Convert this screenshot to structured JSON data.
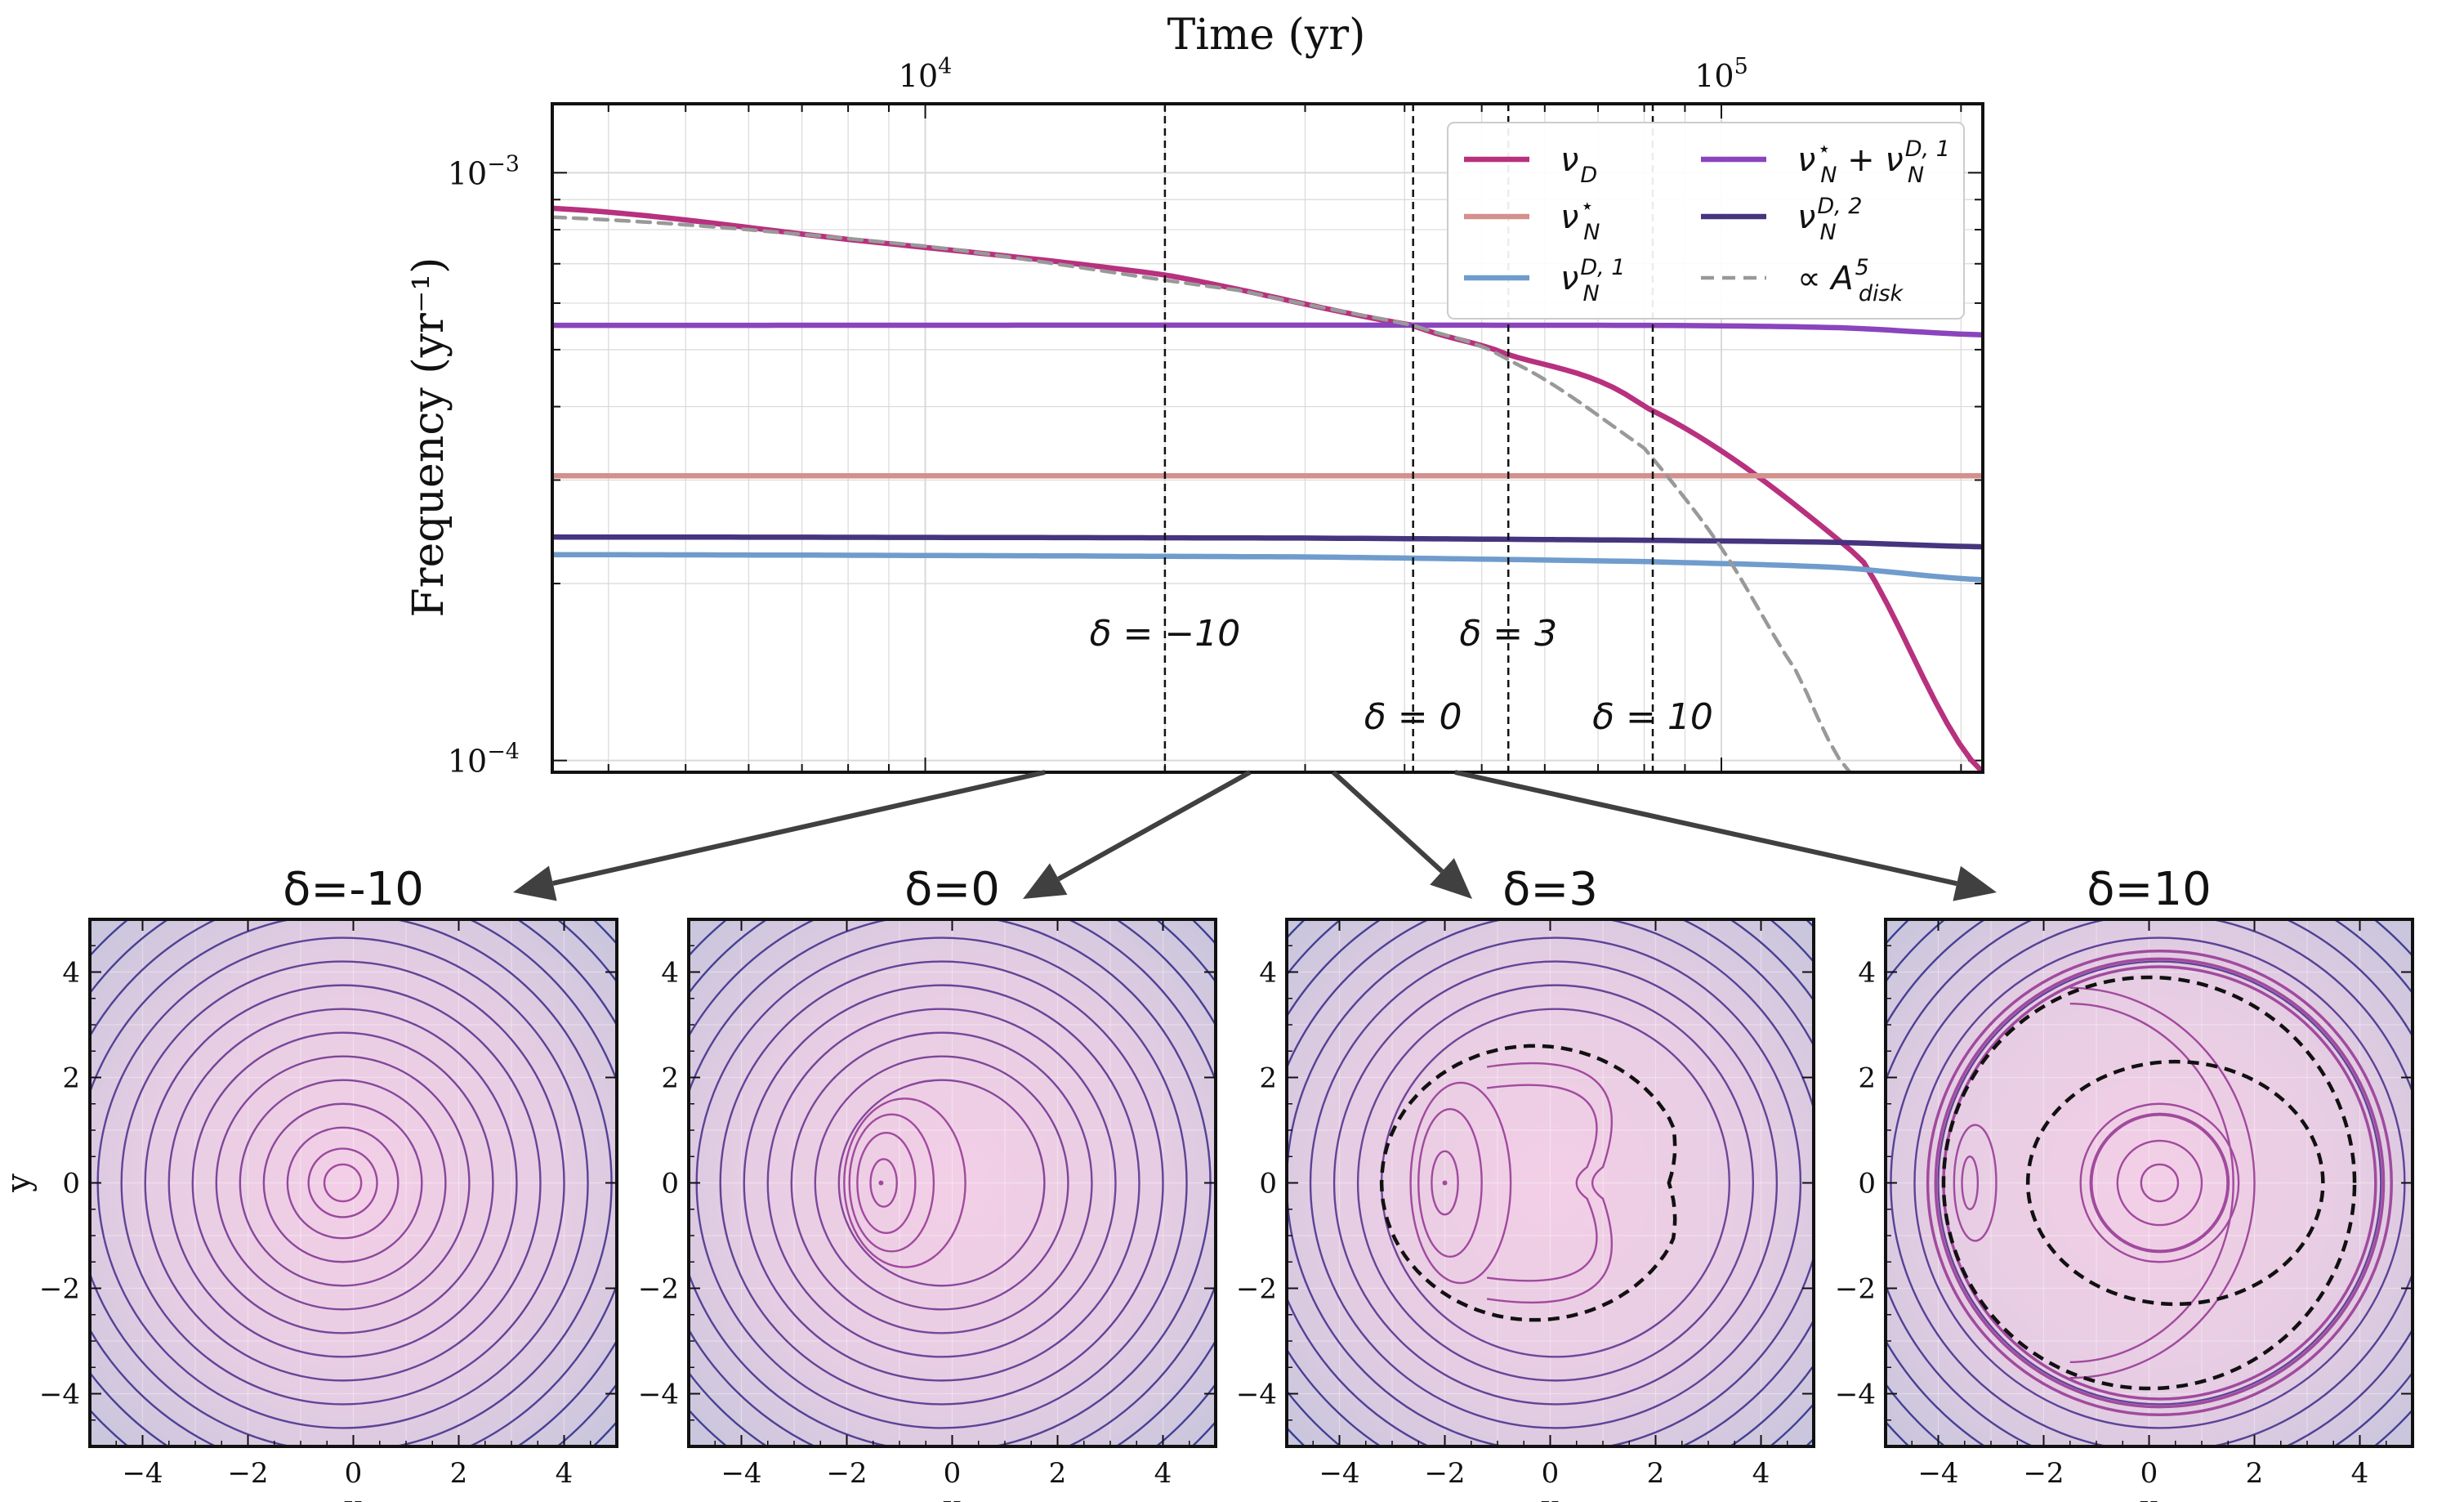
{
  "colors": {
    "nu_D": "#b8317e",
    "nu_N_star": "#d4908c",
    "nu_N_D1": "#6f9ccc",
    "sum": "#8a44bc",
    "nu_N_D2": "#47347f",
    "adisk": "#999999",
    "marker": "#111111",
    "arrow": "#404040",
    "bg_center": "#f3cfe6",
    "bg_edge": "#c6c5dc",
    "contour_inner": "#a14a9e",
    "contour_outer": "#3a3f93"
  },
  "chart_data": [
    {
      "type": "line",
      "xlabel": "Time (yr)",
      "ylabel": "Frequency (yr⁻¹)",
      "xscale": "log",
      "yscale": "log",
      "xlim": [
        3400,
        213000
      ],
      "ylim": [
        9.55e-05,
        0.00131
      ],
      "x_axis_position": "top",
      "xticks": [
        {
          "value": 10000,
          "label": "10",
          "exp": "4"
        },
        {
          "value": 100000,
          "label": "10",
          "exp": "5"
        }
      ],
      "yticks": [
        {
          "value": 0.001,
          "label": "10",
          "exp": "−3"
        },
        {
          "value": 0.0001,
          "label": "10",
          "exp": "−4"
        }
      ],
      "series": [
        {
          "name": "ν_D",
          "legend_main": "ν",
          "legend_sub": "D",
          "legend_sup": "",
          "color_key": "nu_D",
          "dash": "",
          "x": [
            3400,
            8000,
            20000,
            41000,
            54000,
            80000,
            150000,
            213000
          ],
          "y": [
            0.00087,
            0.00077,
            0.00067,
            0.00055,
            0.00049,
            0.0004,
            0.00022,
            9.55e-05
          ]
        },
        {
          "name": "ν_N^⋆",
          "legend_main": "ν",
          "legend_sub": "N",
          "legend_sup": "⋆",
          "color_key": "nu_N_star",
          "dash": "",
          "x": [
            3400,
            213000
          ],
          "y": [
            0.000305,
            0.000305
          ]
        },
        {
          "name": "ν_N^{D,1}",
          "legend_main": "ν",
          "legend_sub": "N",
          "legend_sup": "D, 1",
          "color_key": "nu_N_D1",
          "dash": "",
          "x": [
            3400,
            30000,
            80000,
            140000,
            213000
          ],
          "y": [
            0.000224,
            0.000222,
            0.000218,
            0.000213,
            0.000203
          ]
        },
        {
          "name": "ν_N^⋆ + ν_N^{D,1}",
          "legend_main": "ν",
          "legend_sub": "N",
          "legend_sup": "⋆",
          "legend_extra": "+ ν",
          "legend_sub2": "N",
          "legend_sup2": "D, 1",
          "color_key": "sum",
          "dash": "",
          "x": [
            3400,
            80000,
            140000,
            213000
          ],
          "y": [
            0.00055,
            0.00055,
            0.000545,
            0.00053
          ]
        },
        {
          "name": "ν_N^{D,2}",
          "legend_main": "ν",
          "legend_sub": "N",
          "legend_sup": "D, 2",
          "color_key": "nu_N_D2",
          "dash": "",
          "x": [
            3400,
            30000,
            80000,
            140000,
            213000
          ],
          "y": [
            0.00024,
            0.000239,
            0.000237,
            0.000235,
            0.000231
          ]
        },
        {
          "name": "∝ A_disk^5",
          "legend_main": "∝ A",
          "legend_sub": "disk",
          "legend_sup": "5",
          "color_key": "adisk",
          "dash": "16,10",
          "x": [
            3400,
            10000,
            25000,
            41000,
            54000,
            80000,
            100000,
            125000,
            145000
          ],
          "y": [
            0.00084,
            0.00075,
            0.00063,
            0.00055,
            0.00048,
            0.00034,
            0.00023,
            0.00014,
            9.55e-05
          ]
        }
      ],
      "markers": [
        {
          "label": "δ = −10",
          "x": 20000,
          "row": "upper"
        },
        {
          "label": "δ = 0",
          "x": 41000,
          "row": "lower"
        },
        {
          "label": "δ = 3",
          "x": 54000,
          "row": "upper"
        },
        {
          "label": "δ = 10",
          "x": 82000,
          "row": "lower"
        }
      ],
      "legend": {
        "location": "top-right",
        "columns": 2
      }
    },
    {
      "type": "contour",
      "panels": [
        {
          "title": "δ=-10",
          "delta": -10,
          "show_ylabel": true
        },
        {
          "title": "δ=0",
          "delta": 0,
          "show_ylabel": false
        },
        {
          "title": "δ=3",
          "delta": 3,
          "show_ylabel": false
        },
        {
          "title": "δ=10",
          "delta": 10,
          "show_ylabel": false
        }
      ],
      "xlabel": "x",
      "ylabel": "y",
      "xlim": [
        -5,
        5
      ],
      "ylim": [
        -5,
        5
      ],
      "xticks": [
        -4,
        -2,
        0,
        2,
        4
      ],
      "yticks": [
        -4,
        -2,
        0,
        2,
        4
      ],
      "tick_labels": [
        "−4",
        "−2",
        "0",
        "2",
        "4"
      ],
      "circle_radii": [
        0.35,
        0.65,
        1.05,
        1.5,
        1.95,
        2.4,
        2.85,
        3.3,
        3.75,
        4.2,
        4.65,
        5.1,
        5.55,
        6.0,
        6.45,
        6.9
      ],
      "separatrices": [
        {
          "delta": 3,
          "curves": [
            {
              "cx": -0.3,
              "rx": 2.9,
              "ry": 2.6,
              "notch": 1.4
            }
          ]
        },
        {
          "delta": 10,
          "curves": [
            {
              "cx": 0.0,
              "rx": 3.9,
              "ry": 3.9,
              "notch": 0
            },
            {
              "cx": 0.5,
              "rx": 2.8,
              "ry": 2.3,
              "notch": 0
            }
          ]
        }
      ]
    }
  ]
}
